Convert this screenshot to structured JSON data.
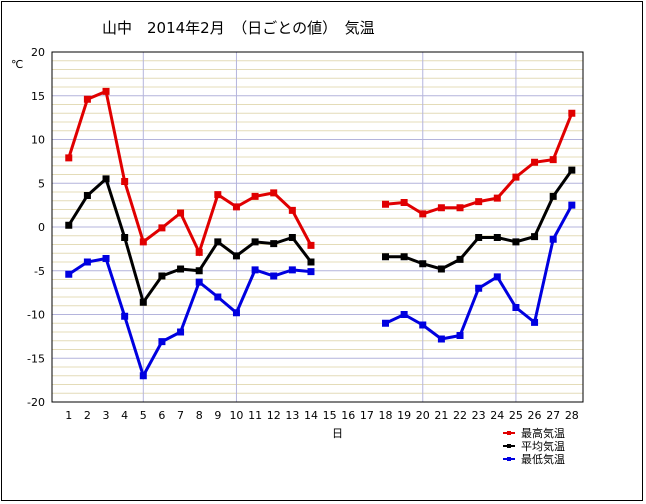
{
  "chart_data": {
    "type": "line",
    "title": "山中　2014年2月　（日ごとの値）　気温",
    "ylabel": "℃",
    "xlabel": "日",
    "ylim": [
      -20,
      20
    ],
    "y_ticks": [
      20,
      15,
      10,
      5,
      0,
      -5,
      -10,
      -15,
      -20
    ],
    "categories": [
      "1",
      "2",
      "3",
      "4",
      "5",
      "6",
      "7",
      "8",
      "9",
      "10",
      "11",
      "12",
      "13",
      "14",
      "15",
      "16",
      "17",
      "18",
      "19",
      "20",
      "21",
      "22",
      "23",
      "24",
      "25",
      "26",
      "27",
      "28"
    ],
    "grid": true,
    "legend_position": "bottom-right",
    "series": [
      {
        "name": "最高気温",
        "color": "#e00000",
        "values": [
          7.9,
          14.6,
          15.5,
          5.2,
          -1.7,
          -0.1,
          1.6,
          -2.9,
          3.7,
          2.3,
          3.5,
          3.9,
          1.9,
          -2.1,
          null,
          null,
          null,
          2.6,
          2.8,
          1.5,
          2.2,
          2.2,
          2.9,
          3.3,
          5.7,
          7.4,
          7.7,
          13.0
        ]
      },
      {
        "name": "平均気温",
        "color": "#000000",
        "values": [
          0.2,
          3.6,
          5.5,
          -1.2,
          -8.6,
          -5.6,
          -4.8,
          -5.0,
          -1.7,
          -3.3,
          -1.7,
          -1.9,
          -1.2,
          -4.0,
          null,
          null,
          null,
          -3.4,
          -3.4,
          -4.2,
          -4.8,
          -3.7,
          -1.2,
          -1.2,
          -1.7,
          -1.1,
          3.5,
          6.5
        ]
      },
      {
        "name": "最低気温",
        "color": "#0000e0",
        "values": [
          -5.4,
          -4.0,
          -3.6,
          -10.2,
          -17.0,
          -13.1,
          -12.0,
          -6.3,
          -8.0,
          -9.8,
          -4.9,
          -5.6,
          -4.9,
          -5.1,
          null,
          null,
          null,
          -11.0,
          -10.0,
          -11.2,
          -12.8,
          -12.4,
          -7.0,
          -5.7,
          -9.2,
          -10.9,
          -1.4,
          2.5
        ]
      }
    ]
  }
}
